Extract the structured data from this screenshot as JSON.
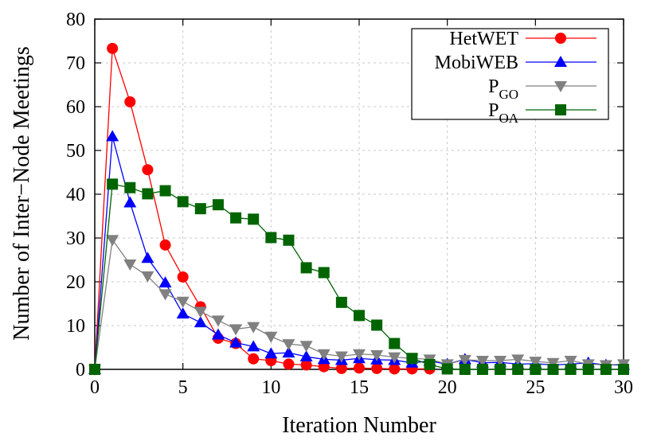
{
  "chart_data": {
    "type": "line",
    "title": "",
    "xlabel": "Iteration Number",
    "ylabel": "Number of Inter−Node Meetings",
    "xlim": [
      0,
      30
    ],
    "ylim": [
      0,
      80
    ],
    "xticks": [
      0,
      5,
      10,
      15,
      20,
      25,
      30
    ],
    "yticks": [
      0,
      10,
      20,
      30,
      40,
      50,
      60,
      70,
      80
    ],
    "grid": true,
    "legend_position": "top-right",
    "series": [
      {
        "name": "HetWET",
        "color": "#ff0000",
        "marker": "circle",
        "x": [
          0,
          1,
          2,
          3,
          4,
          5,
          6,
          7,
          8,
          9,
          10,
          11,
          12,
          13,
          14,
          15,
          16,
          17,
          18,
          19
        ],
        "values": [
          0,
          73.3,
          61.1,
          45.6,
          28.4,
          21.1,
          14.3,
          7.1,
          5.9,
          2.4,
          2.0,
          1.2,
          1.0,
          0.6,
          0.2,
          0.3,
          0.2,
          0.1,
          0.1,
          0.1
        ]
      },
      {
        "name": "MobiWEB",
        "color": "#0000ff",
        "marker": "triangle-up",
        "x": [
          0,
          1,
          2,
          3,
          4,
          5,
          6,
          7,
          8,
          9,
          10,
          11,
          12,
          13,
          14,
          15,
          16,
          17,
          18,
          19,
          20,
          21,
          22,
          23,
          24,
          25,
          26,
          27,
          28,
          29,
          30
        ],
        "values": [
          0,
          53.2,
          38.1,
          25.4,
          19.8,
          12.7,
          10.7,
          7.9,
          6.1,
          5.2,
          3.6,
          3.8,
          2.9,
          2.3,
          2.1,
          2.5,
          2.2,
          2.1,
          1.5,
          1.9,
          1.2,
          2.3,
          1.5,
          1.6,
          1.2,
          1.3,
          1.0,
          1.2,
          1.5,
          1.0,
          1.0
        ]
      },
      {
        "name": "P_GO",
        "name_main": "P",
        "name_sub": "GO",
        "color": "#808080",
        "marker": "triangle-down",
        "x": [
          0,
          1,
          2,
          3,
          4,
          5,
          6,
          7,
          8,
          9,
          10,
          11,
          12,
          13,
          14,
          15,
          16,
          17,
          18,
          19,
          20,
          21,
          22,
          23,
          24,
          25,
          26,
          27,
          28,
          29,
          30
        ],
        "values": [
          0,
          29.6,
          24.0,
          21.3,
          17.2,
          15.5,
          13.2,
          11.2,
          9.2,
          9.7,
          7.5,
          5.8,
          5.4,
          3.5,
          3.0,
          3.5,
          3.3,
          2.8,
          2.5,
          2.3,
          1.2,
          2.2,
          2.0,
          2.0,
          2.3,
          1.8,
          1.5,
          2.0,
          1.2,
          1.0,
          1.2
        ]
      },
      {
        "name": "P_OA",
        "name_main": "P",
        "name_sub": "OA",
        "color": "#006400",
        "marker": "square",
        "x": [
          0,
          1,
          2,
          3,
          4,
          5,
          6,
          7,
          8,
          9,
          10,
          11,
          12,
          13,
          14,
          15,
          16,
          17,
          18,
          19,
          20,
          21,
          22,
          23,
          24,
          25,
          26,
          27,
          28,
          29,
          30
        ],
        "values": [
          0,
          42.3,
          41.5,
          40.1,
          40.8,
          38.3,
          36.7,
          37.6,
          34.6,
          34.3,
          30.1,
          29.5,
          23.2,
          22.1,
          15.3,
          12.3,
          10.1,
          5.9,
          2.5,
          1.1,
          0.1,
          0,
          0,
          0,
          0,
          0,
          0,
          0,
          0,
          0,
          0
        ]
      }
    ]
  }
}
